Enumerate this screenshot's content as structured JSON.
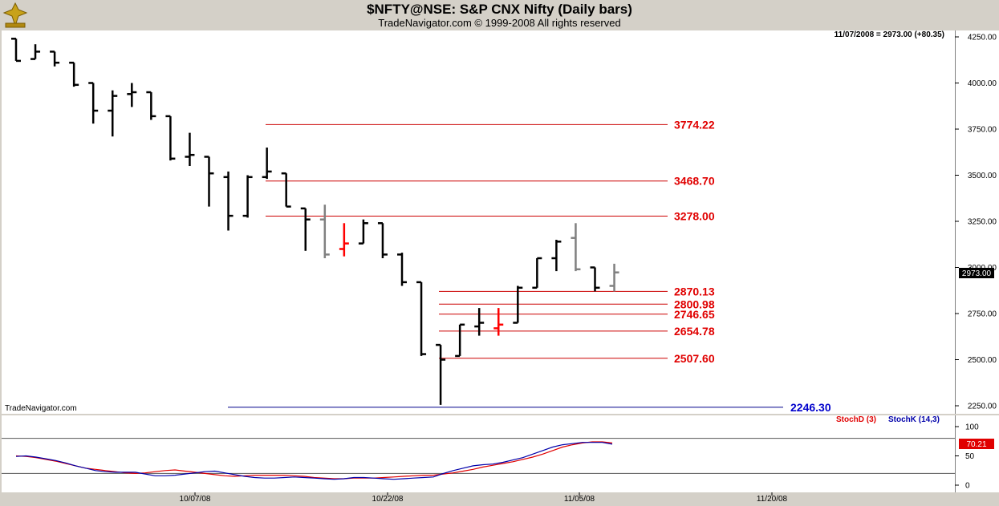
{
  "title": "$NFTY@NSE:  S&P CNX Nifty  (Daily bars)",
  "copyright": "TradeNavigator.com © 1999-2008 All rights reserved",
  "last_bar_info": "11/07/2008 = 2973.00 (+80.35)",
  "watermark": "TradeNavigator.com",
  "logo_icon": "trade-navigator-logo-icon",
  "colors": {
    "panel_bg": "#ffffff",
    "frame_bg": "#d4d0c8",
    "up_bar": "#000000",
    "doji_bar": "#808080",
    "key_bar": "#ff0000",
    "level_line": "#cc0000",
    "level_text": "#e00000",
    "low_line": "#00008b",
    "low_text": "#0000cc",
    "stoch_d": "#e00000",
    "stoch_k": "#0000aa"
  },
  "chart_data": [
    {
      "type": "ohlc",
      "title": "$NFTY@NSE:  S&P CNX Nifty  (Daily bars)",
      "ylim": [
        2200,
        4350
      ],
      "y_ticks": [
        2250,
        2500,
        2750,
        3000,
        3250,
        3500,
        3750,
        4000,
        4250
      ],
      "y_tick_labels": [
        "2250.00",
        "2500.00",
        "2750.00",
        "3000.00",
        "3250.00",
        "3500.00",
        "3750.00",
        "4000.00",
        "4250.00"
      ],
      "x_tick_labels": [
        "10/07/08",
        "10/22/08",
        "11/05/08",
        "11/20/08"
      ],
      "last_price_label": "2973.00",
      "bars": [
        {
          "o": 4240,
          "h": 4240,
          "l": 4120,
          "c": 4120,
          "color": "black"
        },
        {
          "o": 4130,
          "h": 4210,
          "l": 4130,
          "c": 4170,
          "color": "black"
        },
        {
          "o": 4170,
          "h": 4170,
          "l": 4090,
          "c": 4110,
          "color": "black"
        },
        {
          "o": 4110,
          "h": 4110,
          "l": 3980,
          "c": 3990,
          "color": "black"
        },
        {
          "o": 4000,
          "h": 4000,
          "l": 3780,
          "c": 3850,
          "color": "black"
        },
        {
          "o": 3850,
          "h": 3960,
          "l": 3710,
          "c": 3930,
          "color": "black"
        },
        {
          "o": 3940,
          "h": 4000,
          "l": 3870,
          "c": 3950,
          "color": "black"
        },
        {
          "o": 3950,
          "h": 3950,
          "l": 3800,
          "c": 3820,
          "color": "black"
        },
        {
          "o": 3820,
          "h": 3820,
          "l": 3580,
          "c": 3590,
          "color": "black"
        },
        {
          "o": 3600,
          "h": 3730,
          "l": 3550,
          "c": 3610,
          "color": "black"
        },
        {
          "o": 3600,
          "h": 3600,
          "l": 3330,
          "c": 3510,
          "color": "black"
        },
        {
          "o": 3490,
          "h": 3520,
          "l": 3200,
          "c": 3280,
          "color": "black"
        },
        {
          "o": 3280,
          "h": 3500,
          "l": 3270,
          "c": 3490,
          "color": "black"
        },
        {
          "o": 3490,
          "h": 3650,
          "l": 3480,
          "c": 3520,
          "color": "black"
        },
        {
          "o": 3510,
          "h": 3510,
          "l": 3330,
          "c": 3330,
          "color": "black"
        },
        {
          "o": 3320,
          "h": 3320,
          "l": 3090,
          "c": 3260,
          "color": "black"
        },
        {
          "o": 3260,
          "h": 3340,
          "l": 3050,
          "c": 3070,
          "color": "gray"
        },
        {
          "o": 3100,
          "h": 3240,
          "l": 3060,
          "c": 3130,
          "color": "red"
        },
        {
          "o": 3130,
          "h": 3260,
          "l": 3130,
          "c": 3240,
          "color": "black"
        },
        {
          "o": 3240,
          "h": 3240,
          "l": 3050,
          "c": 3070,
          "color": "black"
        },
        {
          "o": 3070,
          "h": 3080,
          "l": 2900,
          "c": 2920,
          "color": "black"
        },
        {
          "o": 2920,
          "h": 2920,
          "l": 2520,
          "c": 2530,
          "color": "black"
        },
        {
          "o": 2580,
          "h": 2580,
          "l": 2255,
          "c": 2500,
          "color": "black"
        },
        {
          "o": 2520,
          "h": 2690,
          "l": 2520,
          "c": 2690,
          "color": "black"
        },
        {
          "o": 2680,
          "h": 2780,
          "l": 2630,
          "c": 2700,
          "color": "black"
        },
        {
          "o": 2670,
          "h": 2780,
          "l": 2630,
          "c": 2690,
          "color": "red"
        },
        {
          "o": 2700,
          "h": 2900,
          "l": 2700,
          "c": 2890,
          "color": "black"
        },
        {
          "o": 2890,
          "h": 3050,
          "l": 2890,
          "c": 3050,
          "color": "black"
        },
        {
          "o": 3050,
          "h": 3150,
          "l": 2980,
          "c": 3140,
          "color": "black"
        },
        {
          "o": 3160,
          "h": 3240,
          "l": 2980,
          "c": 2990,
          "color": "gray"
        },
        {
          "o": 3000,
          "h": 3000,
          "l": 2870,
          "c": 2890,
          "color": "black"
        },
        {
          "o": 2900,
          "h": 3020,
          "l": 2870,
          "c": 2973,
          "color": "gray"
        }
      ],
      "levels": [
        {
          "value": 3774.22,
          "label": "3774.22",
          "color": "red"
        },
        {
          "value": 3468.7,
          "label": "3468.70",
          "color": "red"
        },
        {
          "value": 3278.0,
          "label": "3278.00",
          "color": "red"
        },
        {
          "value": 2870.13,
          "label": "2870.13",
          "color": "red"
        },
        {
          "value": 2800.98,
          "label": "2800.98",
          "color": "red"
        },
        {
          "value": 2746.65,
          "label": "2746.65",
          "color": "red"
        },
        {
          "value": 2654.78,
          "label": "2654.78",
          "color": "red"
        },
        {
          "value": 2507.6,
          "label": "2507.60",
          "color": "red"
        },
        {
          "value": 2246.3,
          "label": "2246.30",
          "color": "blue"
        }
      ]
    },
    {
      "type": "line",
      "ylim": [
        -10,
        120
      ],
      "y_ticks": [
        0,
        50,
        100
      ],
      "y_tick_labels": [
        "0",
        "50",
        "100"
      ],
      "reference_lines": [
        20,
        80
      ],
      "legend": [
        {
          "name": "StochD (3)",
          "color": "red"
        },
        {
          "name": "StochK (14,3)",
          "color": "blue"
        }
      ],
      "last_value_label": "70.21",
      "series": [
        {
          "name": "StochD (3)",
          "color": "red",
          "values": [
            50,
            49,
            47,
            44,
            41,
            37,
            33,
            29,
            27,
            25,
            23,
            21,
            20,
            21,
            23,
            25,
            26,
            24,
            22,
            20,
            18,
            16,
            15,
            16,
            17,
            17,
            17,
            17,
            16,
            15,
            13,
            12,
            11,
            11,
            12,
            12,
            12,
            13,
            14,
            15,
            16,
            17,
            17,
            19,
            21,
            24,
            27,
            31,
            34,
            37,
            40,
            44,
            48,
            53,
            59,
            65,
            69,
            72,
            74,
            74,
            72
          ]
        },
        {
          "name": "StochK (14,3)",
          "color": "blue",
          "values": [
            49,
            50,
            48,
            45,
            42,
            38,
            33,
            29,
            25,
            23,
            22,
            22,
            22,
            19,
            16,
            16,
            17,
            19,
            21,
            23,
            24,
            21,
            18,
            15,
            13,
            12,
            12,
            13,
            14,
            13,
            12,
            11,
            10,
            11,
            13,
            13,
            12,
            11,
            10,
            11,
            12,
            13,
            14,
            20,
            25,
            29,
            33,
            35,
            36,
            39,
            43,
            47,
            53,
            59,
            65,
            69,
            71,
            73,
            73,
            73,
            70
          ]
        }
      ]
    }
  ]
}
